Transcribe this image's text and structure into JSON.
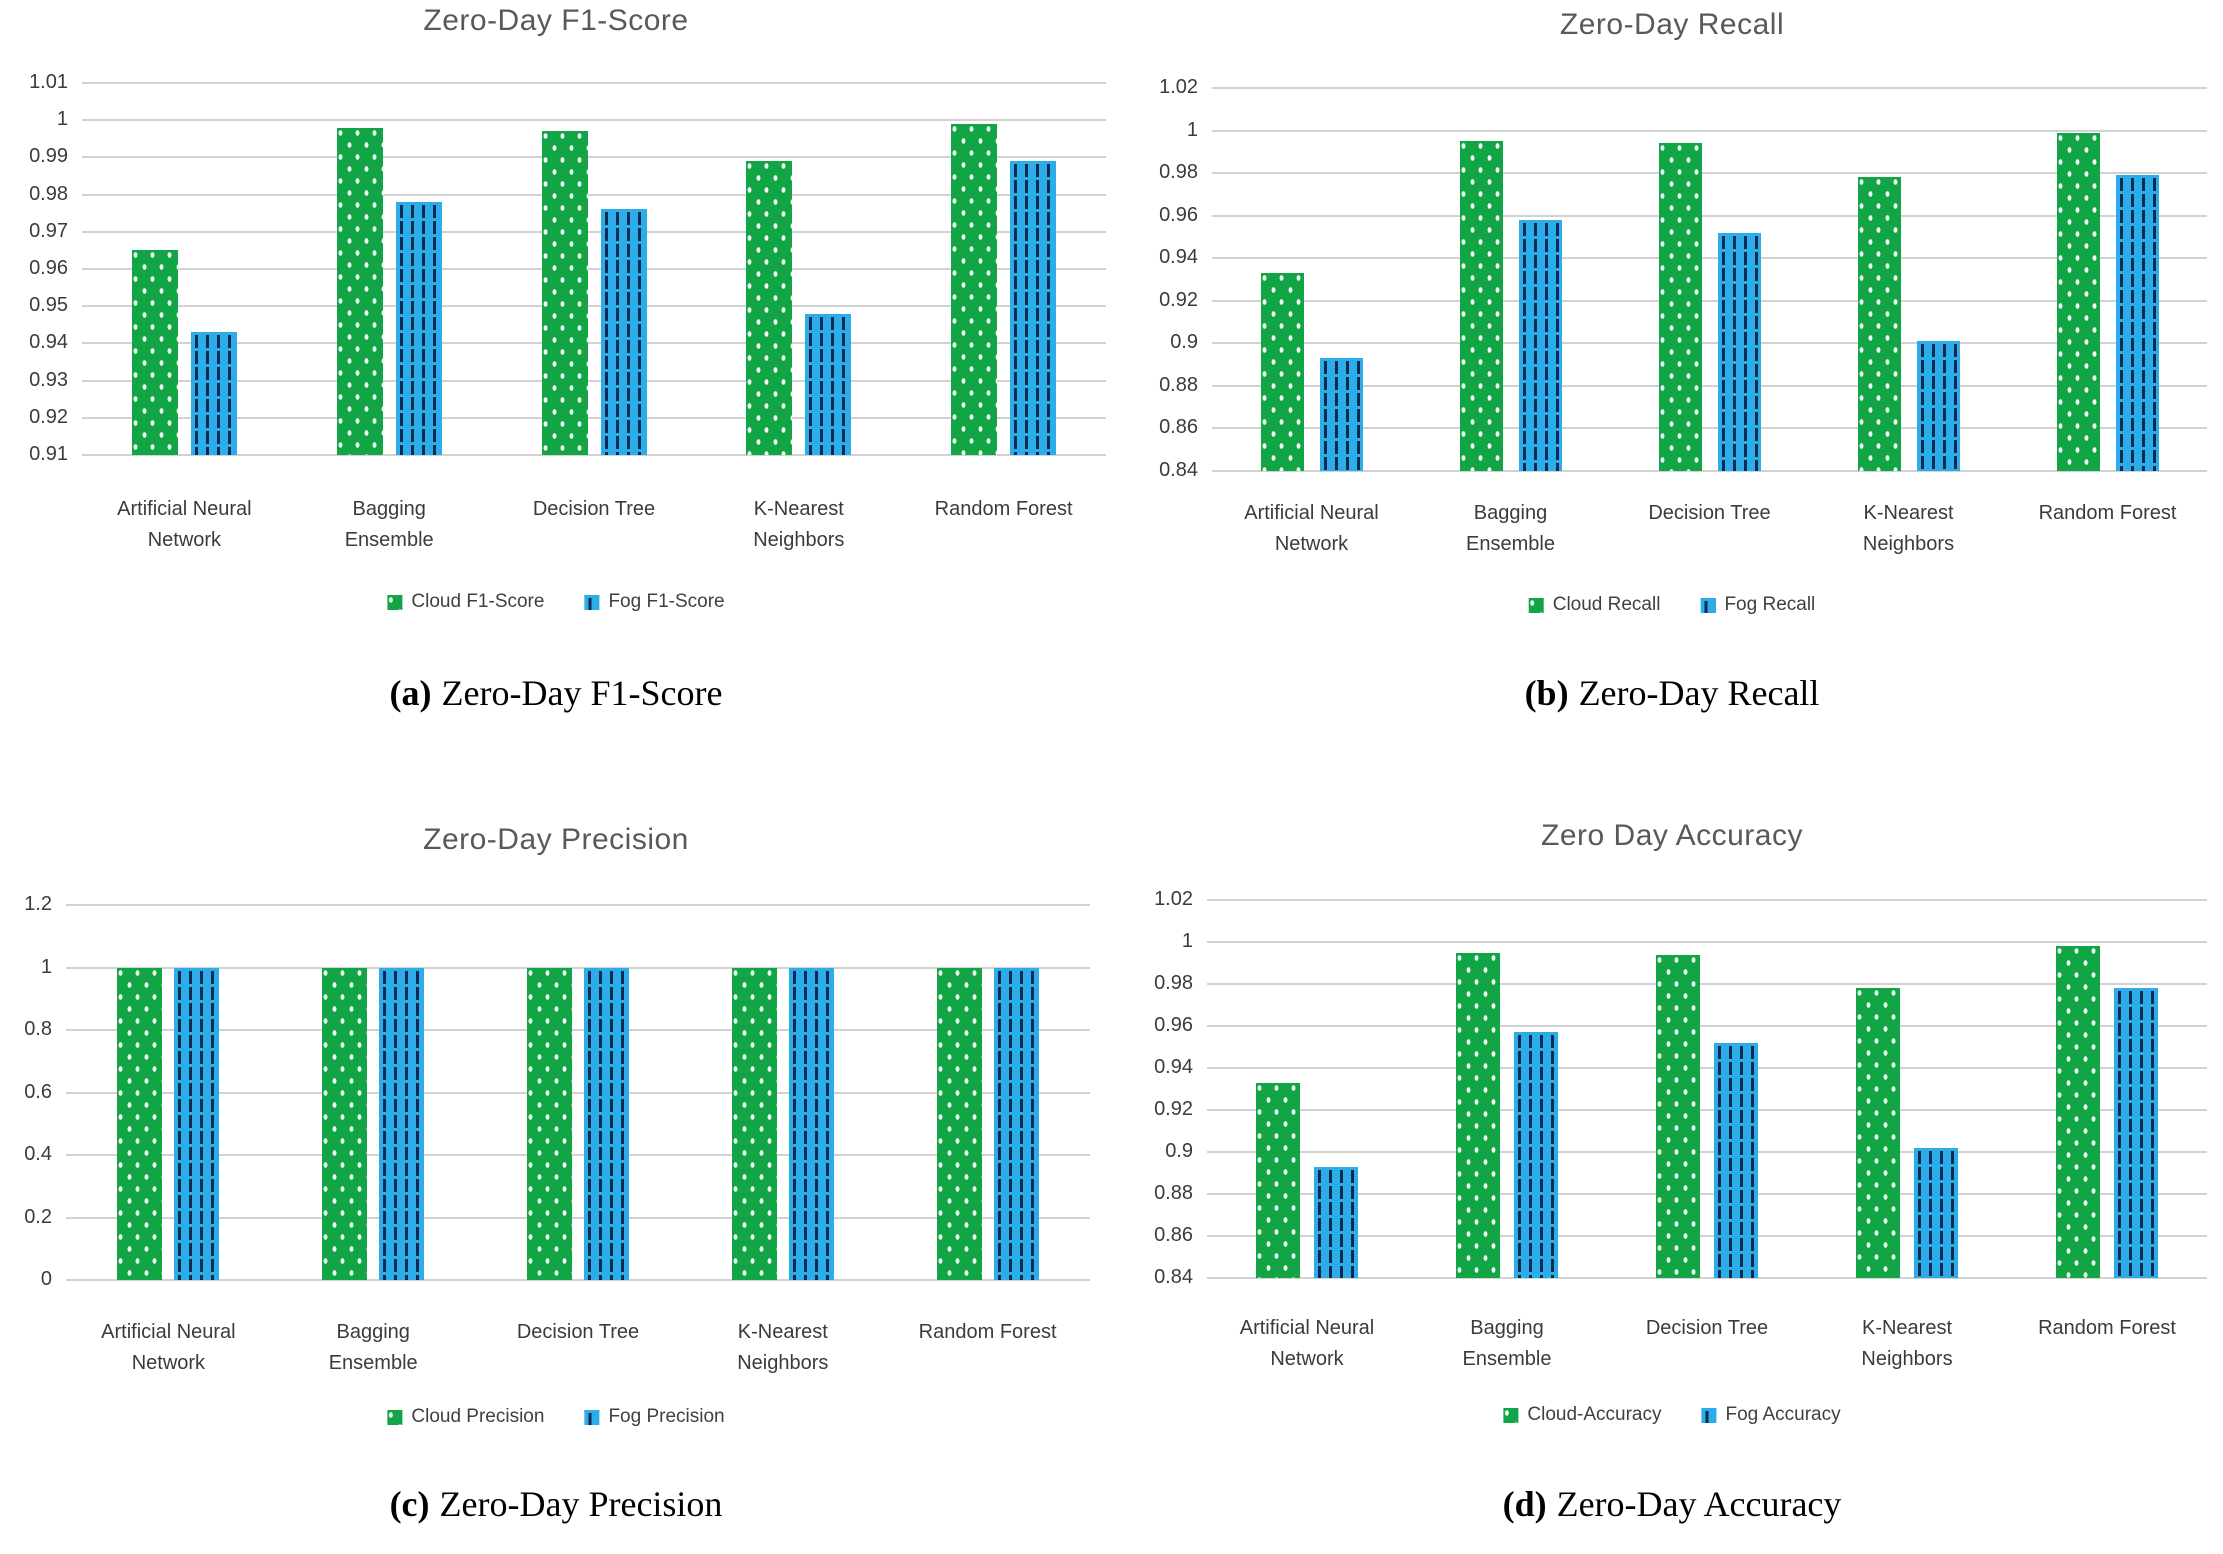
{
  "colors": {
    "cloud_green": "#12A546",
    "fog_blue": "#2CACE9",
    "gridline": "#D2D2D2",
    "title_text": "#595959",
    "axis_text": "#3B3B3B",
    "caption_text": "#000000"
  },
  "chart_data": [
    {
      "type": "bar",
      "panel": "a",
      "title": "Zero-Day F1-Score",
      "caption": {
        "label": "(a)",
        "text": "Zero-Day F1-Score"
      },
      "categories": [
        "Artificial Neural Network",
        "Bagging Ensemble",
        "Decision Tree",
        "K-Nearest Neighbors",
        "Random Forest"
      ],
      "y_ticks": [
        "1.01",
        "1",
        "0.99",
        "0.98",
        "0.97",
        "0.96",
        "0.95",
        "0.94",
        "0.93",
        "0.92",
        "0.91"
      ],
      "ylim": [
        0.91,
        1.01
      ],
      "grid": true,
      "legend_position": "bottom",
      "series": [
        {
          "name": "Cloud F1-Score",
          "color": "cloud_green",
          "values": [
            0.965,
            0.998,
            0.997,
            0.989,
            0.999
          ]
        },
        {
          "name": "Fog F1-Score",
          "color": "fog_blue",
          "values": [
            0.943,
            0.978,
            0.976,
            0.948,
            0.989
          ]
        }
      ]
    },
    {
      "type": "bar",
      "panel": "b",
      "title": "Zero-Day Recall",
      "caption": {
        "label": "(b)",
        "text": "Zero-Day Recall"
      },
      "categories": [
        "Artificial Neural Network",
        "Bagging Ensemble",
        "Decision Tree",
        "K-Nearest Neighbors",
        "Random Forest"
      ],
      "y_ticks": [
        "1.02",
        "1",
        "0.98",
        "0.96",
        "0.94",
        "0.92",
        "0.9",
        "0.88",
        "0.86",
        "0.84"
      ],
      "ylim": [
        0.84,
        1.02
      ],
      "grid": true,
      "legend_position": "bottom",
      "series": [
        {
          "name": "Cloud Recall",
          "color": "cloud_green",
          "values": [
            0.933,
            0.995,
            0.994,
            0.978,
            0.999
          ]
        },
        {
          "name": "Fog Recall",
          "color": "fog_blue",
          "values": [
            0.893,
            0.958,
            0.952,
            0.901,
            0.979
          ]
        }
      ]
    },
    {
      "type": "bar",
      "panel": "c",
      "title": "Zero-Day Precision",
      "caption": {
        "label": "(c)",
        "text": "Zero-Day Precision"
      },
      "categories": [
        "Artificial Neural Network",
        "Bagging Ensemble",
        "Decision Tree",
        "K-Nearest Neighbors",
        "Random Forest"
      ],
      "y_ticks": [
        "1.2",
        "1",
        "0.8",
        "0.6",
        "0.4",
        "0.2",
        "0"
      ],
      "ylim": [
        0,
        1.2
      ],
      "grid": true,
      "legend_position": "bottom",
      "series": [
        {
          "name": "Cloud Precision",
          "color": "cloud_green",
          "values": [
            1,
            1,
            1,
            1,
            1
          ]
        },
        {
          "name": "Fog Precision",
          "color": "fog_blue",
          "values": [
            1,
            1,
            1,
            1,
            1
          ]
        }
      ]
    },
    {
      "type": "bar",
      "panel": "d",
      "title": "Zero Day Accuracy",
      "caption": {
        "label": "(d)",
        "text": "Zero-Day Accuracy"
      },
      "categories": [
        "Artificial Neural Network",
        "Bagging Ensemble",
        "Decision Tree",
        "K-Nearest Neighbors",
        "Random Forest"
      ],
      "y_ticks": [
        "1.02",
        "1",
        "0.98",
        "0.96",
        "0.94",
        "0.92",
        "0.9",
        "0.88",
        "0.86",
        "0.84"
      ],
      "ylim": [
        0.84,
        1.02
      ],
      "grid": true,
      "legend_position": "bottom",
      "series": [
        {
          "name": "Cloud-Accuracy",
          "color": "cloud_green",
          "values": [
            0.933,
            0.995,
            0.994,
            0.978,
            0.998
          ]
        },
        {
          "name": "Fog Accuracy",
          "color": "fog_blue",
          "values": [
            0.893,
            0.957,
            0.952,
            0.902,
            0.978
          ]
        }
      ]
    }
  ]
}
